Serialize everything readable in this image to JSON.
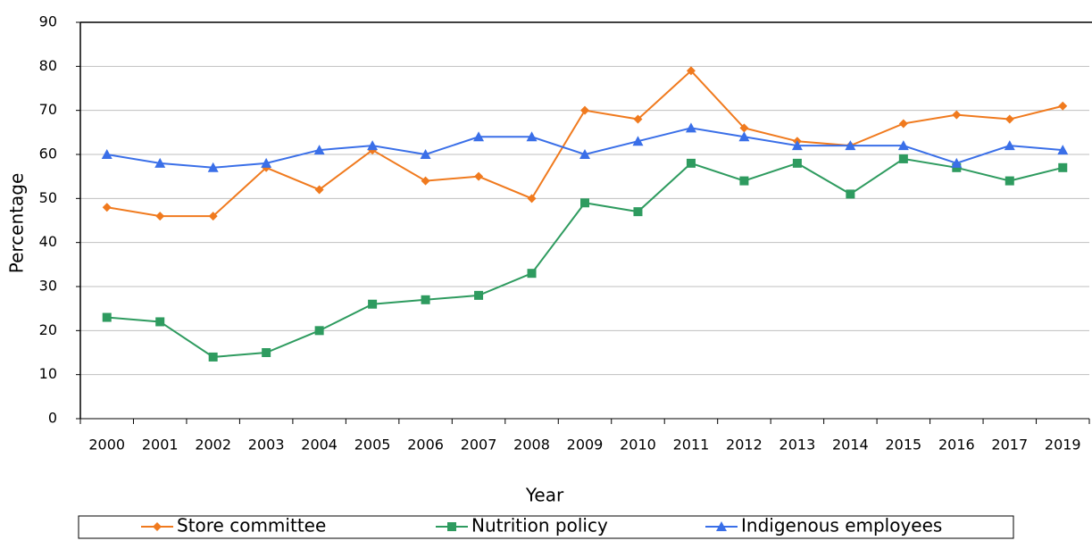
{
  "chart_data": {
    "type": "line",
    "x_label": "Year",
    "y_label": "Percentage",
    "categories": [
      "2000",
      "2001",
      "2002",
      "2003",
      "2004",
      "2005",
      "2006",
      "2007",
      "2008",
      "2009",
      "2010",
      "2011",
      "2012",
      "2013",
      "2014",
      "2015",
      "2016",
      "2017",
      "2019"
    ],
    "series": [
      {
        "name": "Store committee",
        "color": "#f07a1e",
        "marker": "diamond",
        "values": [
          48,
          46,
          46,
          57,
          52,
          61,
          54,
          55,
          50,
          70,
          68,
          79,
          66,
          63,
          62,
          67,
          69,
          68,
          71
        ]
      },
      {
        "name": "Nutrition policy",
        "color": "#2e9b5f",
        "marker": "square",
        "values": [
          23,
          22,
          14,
          15,
          20,
          26,
          27,
          28,
          33,
          49,
          47,
          58,
          54,
          58,
          51,
          59,
          57,
          54,
          57
        ]
      },
      {
        "name": "Indigenous employees",
        "color": "#3a6fe8",
        "marker": "triangle",
        "values": [
          60,
          58,
          57,
          58,
          61,
          62,
          60,
          64,
          64,
          60,
          63,
          66,
          64,
          62,
          62,
          62,
          58,
          62,
          61
        ]
      }
    ],
    "ylim": [
      0,
      90
    ],
    "yticks": [
      0,
      10,
      20,
      30,
      40,
      50,
      60,
      70,
      80,
      90
    ],
    "grid": true,
    "legend": "bottom"
  }
}
